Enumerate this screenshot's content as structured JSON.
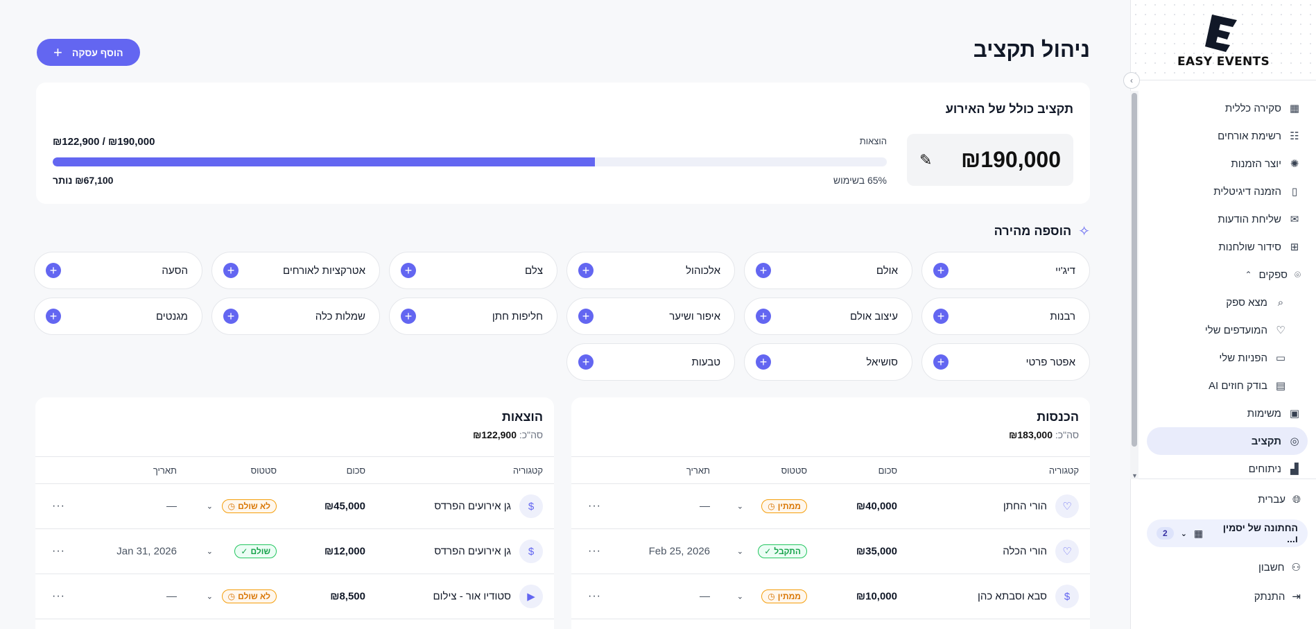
{
  "brand": {
    "name": "EASY EVENTS"
  },
  "sidebar": {
    "items": [
      {
        "label": "סקירה כללית",
        "icon": "dashboard-icon",
        "glyph": "▦"
      },
      {
        "label": "רשימת אורחים",
        "icon": "guests-icon",
        "glyph": "☷"
      },
      {
        "label": "יוצר הזמנות",
        "icon": "sparkle-icon",
        "glyph": "✺"
      },
      {
        "label": "הזמנה דיגיטלית",
        "icon": "phone-icon",
        "glyph": "▯"
      },
      {
        "label": "שליחת הודעות",
        "icon": "megaphone-icon",
        "glyph": "✉"
      },
      {
        "label": "סידור שולחנות",
        "icon": "table-icon",
        "glyph": "⊞"
      },
      {
        "label": "ספקים",
        "icon": "location-pin-icon",
        "glyph": "⌾"
      },
      {
        "label": "מצא ספק",
        "icon": "search-icon",
        "glyph": "⌕"
      },
      {
        "label": "המועדפים שלי",
        "icon": "heart-icon",
        "glyph": "♡"
      },
      {
        "label": "הפניות שלי",
        "icon": "chat-icon",
        "glyph": "▭"
      },
      {
        "label": "בודק חוזים AI",
        "icon": "document-icon",
        "glyph": "▤"
      },
      {
        "label": "משימות",
        "icon": "clipboard-icon",
        "glyph": "▣"
      },
      {
        "label": "תקציב",
        "icon": "budget-icon",
        "glyph": "◎"
      },
      {
        "label": "ניתוחים",
        "icon": "chart-icon",
        "glyph": "▟"
      }
    ],
    "language": "עברית",
    "event_name": "החתונה של יסמין ו...",
    "event_count": "2",
    "account": "חשבון",
    "logout": "התנתק"
  },
  "page": {
    "title": "ניהול תקציב",
    "add_button": "הוסף עסקה"
  },
  "budget": {
    "title": "תקציב כולל של האירוע",
    "total": "₪190,000",
    "expenses_label": "הוצאות",
    "ratio": "₪122,900 / ₪190,000",
    "used_percent": 65,
    "used_label": "65% בשימוש",
    "remaining_label": "₪67,100 נותר",
    "accent": "#6366f1"
  },
  "quick_add": {
    "title": "הוספה מהירה",
    "items": [
      "דיג'יי",
      "אולם",
      "אלכוהול",
      "צלם",
      "אטרקציות לאורחים",
      "הסעה",
      "רבנות",
      "עיצוב אולם",
      "איפור ושיער",
      "חליפות חתן",
      "שמלות כלה",
      "מגנטים",
      "אפטר פרטי",
      "סושיאל",
      "טבעות"
    ]
  },
  "income": {
    "title": "הכנסות",
    "sum_label": "סה\"כ:",
    "sum": "₪183,000",
    "headers": {
      "category": "קטגוריה",
      "amount": "סכום",
      "status": "סטטוס",
      "date": "תאריך"
    },
    "rows": [
      {
        "category": "הורי החתן",
        "icon": "heart-icon",
        "glyph": "♡",
        "amount": "₪40,000",
        "status": "ממתין",
        "status_type": "pending",
        "date": "—"
      },
      {
        "category": "הורי הכלה",
        "icon": "heart-icon",
        "glyph": "♡",
        "amount": "₪35,000",
        "status": "התקבל",
        "status_type": "ok",
        "date": "Feb 25, 2026"
      },
      {
        "category": "סבא וסבתא כהן",
        "icon": "dollar-icon",
        "glyph": "$",
        "amount": "₪10,000",
        "status": "ממתין",
        "status_type": "pending",
        "date": "—"
      }
    ]
  },
  "expenses": {
    "title": "הוצאות",
    "sum_label": "סה\"כ:",
    "sum": "₪122,900",
    "headers": {
      "category": "קטגוריה",
      "amount": "סכום",
      "status": "סטטוס",
      "date": "תאריך"
    },
    "rows": [
      {
        "category": "גן אירועים הפרדס",
        "icon": "dollar-icon",
        "glyph": "$",
        "amount": "₪45,000",
        "status": "לא שולם",
        "status_type": "unpaid",
        "date": "—"
      },
      {
        "category": "גן אירועים הפרדס",
        "icon": "dollar-icon",
        "glyph": "$",
        "amount": "₪12,000",
        "status": "שולם",
        "status_type": "ok",
        "date": "Jan 31, 2026"
      },
      {
        "category": "סטודיו אור - צילום",
        "icon": "video-icon",
        "glyph": "▶",
        "amount": "₪8,500",
        "status": "לא שולם",
        "status_type": "unpaid",
        "date": "—"
      }
    ]
  }
}
